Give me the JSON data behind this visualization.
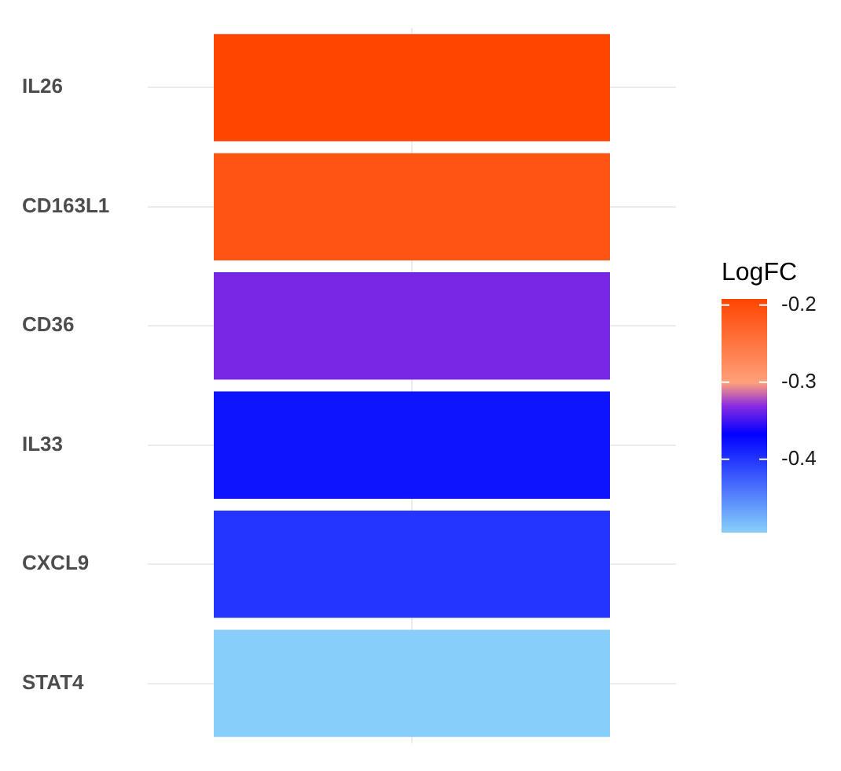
{
  "chart_data": {
    "type": "heatmap",
    "categories": [
      null
    ],
    "y_categories": [
      "IL26",
      "CD163L1",
      "CD36",
      "IL33",
      "CXCL9",
      "STAT4"
    ],
    "cells": [
      [
        -0.192
      ],
      [
        -0.21
      ],
      [
        -0.335
      ],
      [
        -0.38
      ],
      [
        -0.4
      ],
      [
        -0.494
      ]
    ],
    "clabel": "LogFC",
    "clim": [
      -0.494,
      -0.192
    ],
    "cticks": [
      -0.4,
      -0.3,
      -0.2
    ],
    "grid": true
  }
}
